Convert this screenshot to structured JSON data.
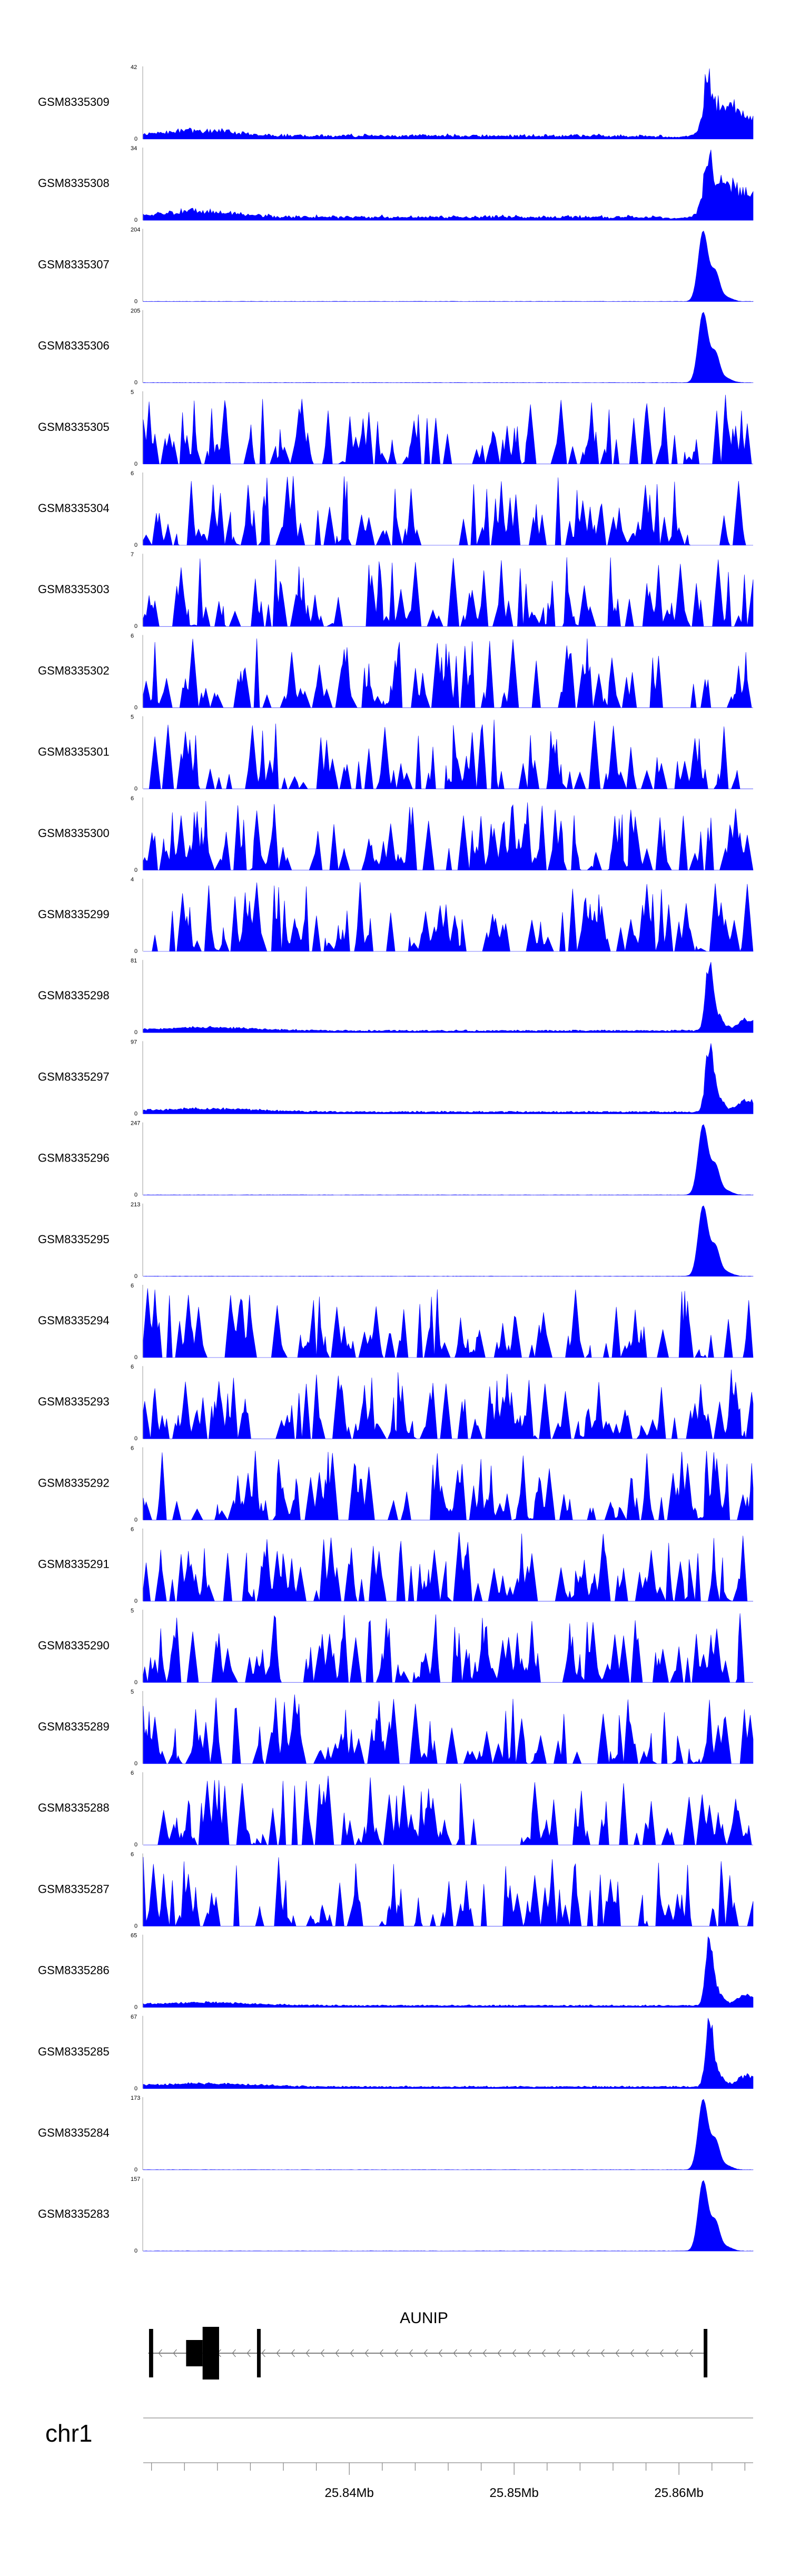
{
  "chart_data": {
    "type": "area",
    "chromosome": "chr1",
    "x_range_mb": [
      25.8275,
      25.8645
    ],
    "x_ticks": [
      {
        "value": 25.84,
        "label": "25.84Mb"
      },
      {
        "value": 25.85,
        "label": "25.85Mb"
      },
      {
        "value": 25.86,
        "label": "25.86Mb"
      }
    ],
    "fill_color": "#0000ff",
    "tracks": [
      {
        "name": "GSM8335309",
        "ymax": 42,
        "ymax_label": "42",
        "profile": "hump"
      },
      {
        "name": "GSM8335308",
        "ymax": 34,
        "ymax_label": "34",
        "profile": "hump"
      },
      {
        "name": "GSM8335307",
        "ymax": 204,
        "ymax_label": "204",
        "profile": "peak"
      },
      {
        "name": "GSM8335306",
        "ymax": 205,
        "ymax_label": "205",
        "profile": "peak"
      },
      {
        "name": "GSM8335305",
        "ymax": 5,
        "ymax_label": "5",
        "profile": "noise"
      },
      {
        "name": "GSM8335304",
        "ymax": 6,
        "ymax_label": "6",
        "profile": "noise"
      },
      {
        "name": "GSM8335303",
        "ymax": 7,
        "ymax_label": "7",
        "profile": "noise"
      },
      {
        "name": "GSM8335302",
        "ymax": 6,
        "ymax_label": "6",
        "profile": "noise"
      },
      {
        "name": "GSM8335301",
        "ymax": 5,
        "ymax_label": "5",
        "profile": "noise"
      },
      {
        "name": "GSM8335300",
        "ymax": 6,
        "ymax_label": "6",
        "profile": "noise"
      },
      {
        "name": "GSM8335299",
        "ymax": 4,
        "ymax_label": "4",
        "profile": "noise"
      },
      {
        "name": "GSM8335298",
        "ymax": 81,
        "ymax_label": "81",
        "profile": "spike"
      },
      {
        "name": "GSM8335297",
        "ymax": 97,
        "ymax_label": "97",
        "profile": "spike"
      },
      {
        "name": "GSM8335296",
        "ymax": 247,
        "ymax_label": "247",
        "profile": "peak"
      },
      {
        "name": "GSM8335295",
        "ymax": 213,
        "ymax_label": "213",
        "profile": "peak"
      },
      {
        "name": "GSM8335294",
        "ymax": 6,
        "ymax_label": "6",
        "profile": "noise"
      },
      {
        "name": "GSM8335293",
        "ymax": 6,
        "ymax_label": "6",
        "profile": "noise"
      },
      {
        "name": "GSM8335292",
        "ymax": 6,
        "ymax_label": "6",
        "profile": "noise"
      },
      {
        "name": "GSM8335291",
        "ymax": 6,
        "ymax_label": "6",
        "profile": "noise"
      },
      {
        "name": "GSM8335290",
        "ymax": 5,
        "ymax_label": "5",
        "profile": "noise"
      },
      {
        "name": "GSM8335289",
        "ymax": 5,
        "ymax_label": "5",
        "profile": "noise"
      },
      {
        "name": "GSM8335288",
        "ymax": 6,
        "ymax_label": "6",
        "profile": "noise"
      },
      {
        "name": "GSM8335287",
        "ymax": 6,
        "ymax_label": "6",
        "profile": "noise"
      },
      {
        "name": "GSM8335286",
        "ymax": 65,
        "ymax_label": "65",
        "profile": "spike"
      },
      {
        "name": "GSM8335285",
        "ymax": 67,
        "ymax_label": "67",
        "profile": "spike"
      },
      {
        "name": "GSM8335284",
        "ymax": 173,
        "ymax_label": "173",
        "profile": "peak"
      },
      {
        "name": "GSM8335283",
        "ymax": 157,
        "ymax_label": "157",
        "profile": "peak"
      }
    ],
    "ymin_label": "0",
    "gene": {
      "name": "AUNIP",
      "strand": "-",
      "start_mb": 25.8278,
      "end_mb": 25.8617,
      "exons": [
        {
          "start_mb": 25.82785,
          "end_mb": 25.8281,
          "kind": "edge"
        },
        {
          "start_mb": 25.8301,
          "end_mb": 25.8311,
          "kind": "utr"
        },
        {
          "start_mb": 25.8311,
          "end_mb": 25.8321,
          "kind": "cds"
        },
        {
          "start_mb": 25.8344,
          "end_mb": 25.8346,
          "kind": "edge"
        },
        {
          "start_mb": 25.8615,
          "end_mb": 25.8617,
          "kind": "edge"
        }
      ]
    }
  }
}
